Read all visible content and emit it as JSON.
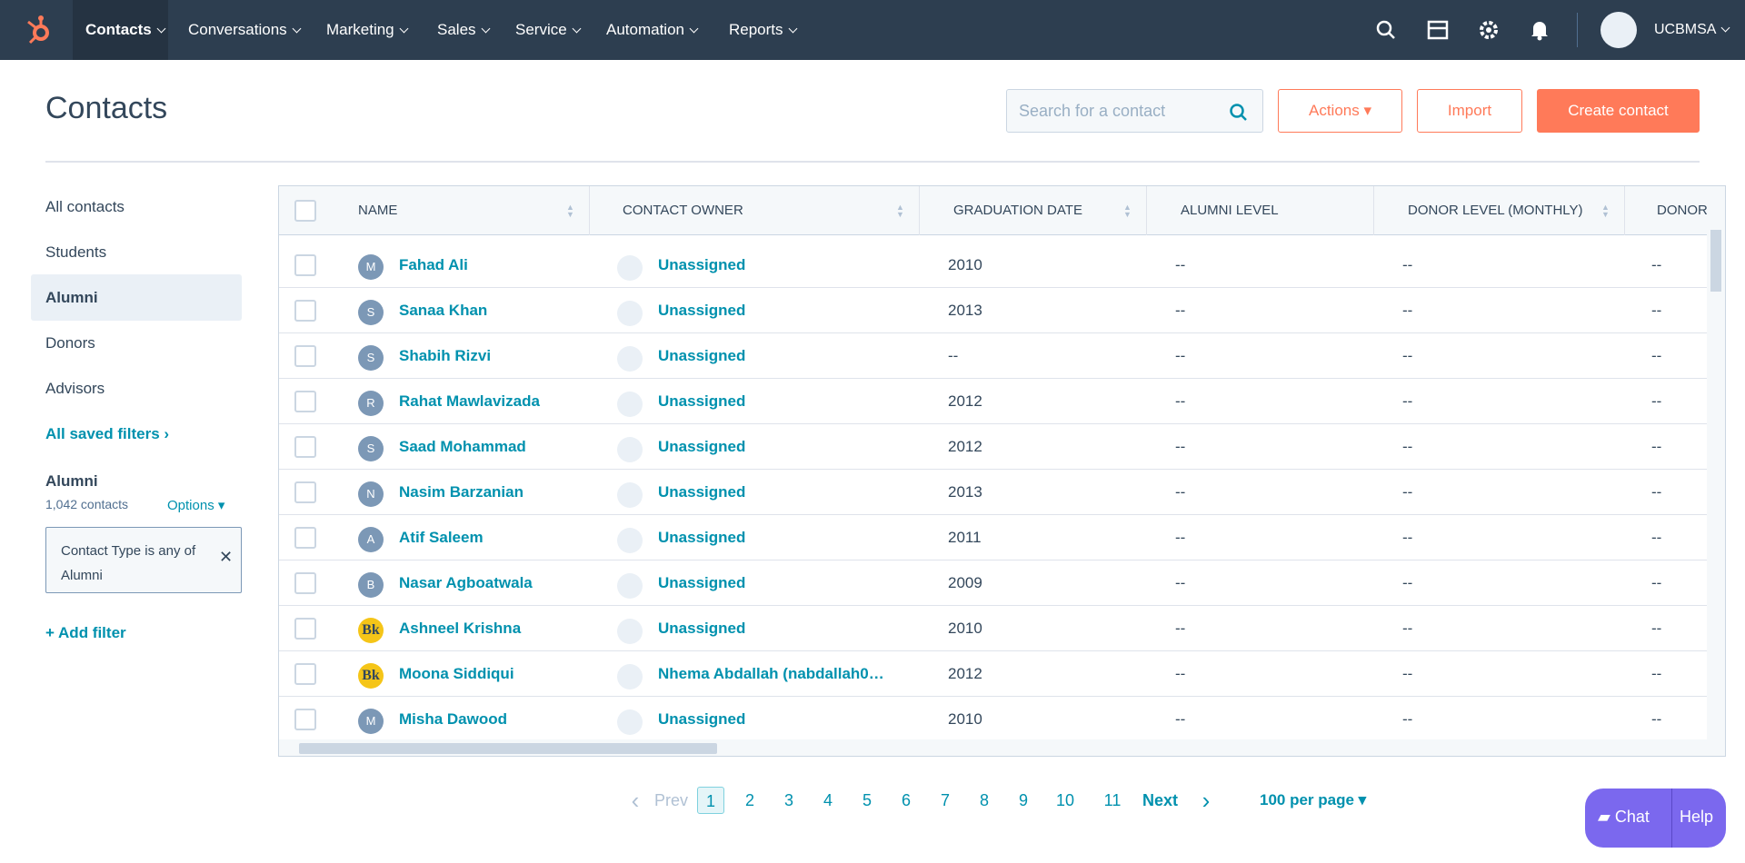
{
  "nav": {
    "items": [
      "Contacts",
      "Conversations",
      "Marketing",
      "Sales",
      "Service",
      "Automation",
      "Reports"
    ],
    "account": "UCBMSA"
  },
  "header": {
    "title": "Contacts",
    "search_placeholder": "Search for a contact",
    "actions": "Actions",
    "import": "Import",
    "create": "Create contact"
  },
  "sidebar": {
    "views": [
      "All contacts",
      "Students",
      "Alumni",
      "Donors",
      "Advisors"
    ],
    "saved_filters": "All saved filters",
    "filter_panel": {
      "name": "Alumni",
      "count": "1,042 contacts",
      "options": "Options",
      "filter": "Contact Type is any of Alumni"
    },
    "add_filter": "Add filter"
  },
  "table": {
    "columns": [
      "NAME",
      "CONTACT OWNER",
      "GRADUATION DATE",
      "ALUMNI LEVEL",
      "DONOR LEVEL (MONTHLY)",
      "DONOR"
    ],
    "rows": [
      [
        "M",
        "Fahad Ali",
        "Unassigned",
        "2010",
        "--",
        "--",
        "--"
      ],
      [
        "S",
        "Sanaa Khan",
        "Unassigned",
        "2013",
        "--",
        "--",
        "--"
      ],
      [
        "S",
        "Shabih Rizvi",
        "Unassigned",
        "--",
        "--",
        "--",
        "--"
      ],
      [
        "R",
        "Rahat Mawlavizada",
        "Unassigned",
        "2012",
        "--",
        "--",
        "--"
      ],
      [
        "S",
        "Saad Mohammad",
        "Unassigned",
        "2012",
        "--",
        "--",
        "--"
      ],
      [
        "N",
        "Nasim Barzanian",
        "Unassigned",
        "2013",
        "--",
        "--",
        "--"
      ],
      [
        "A",
        "Atif Saleem",
        "Unassigned",
        "2011",
        "--",
        "--",
        "--"
      ],
      [
        "B",
        "Nasar Agboatwala",
        "Unassigned",
        "2009",
        "--",
        "--",
        "--"
      ],
      [
        "Bk",
        "Ashneel Krishna",
        "Unassigned",
        "2010",
        "--",
        "--",
        "--"
      ],
      [
        "Bk",
        "Moona Siddiqui",
        "Nhema Abdallah (nabdallah0…",
        "2012",
        "--",
        "--",
        "--"
      ],
      [
        "M",
        "Misha Dawood",
        "Unassigned",
        "2010",
        "--",
        "--",
        "--"
      ]
    ]
  },
  "pagination": {
    "prev": "Prev",
    "pages": [
      "1",
      "2",
      "3",
      "4",
      "5",
      "6",
      "7",
      "8",
      "9",
      "10",
      "11"
    ],
    "next": "Next",
    "per_page": "100 per page"
  },
  "chat": {
    "chat": "Chat",
    "help": "Help"
  }
}
